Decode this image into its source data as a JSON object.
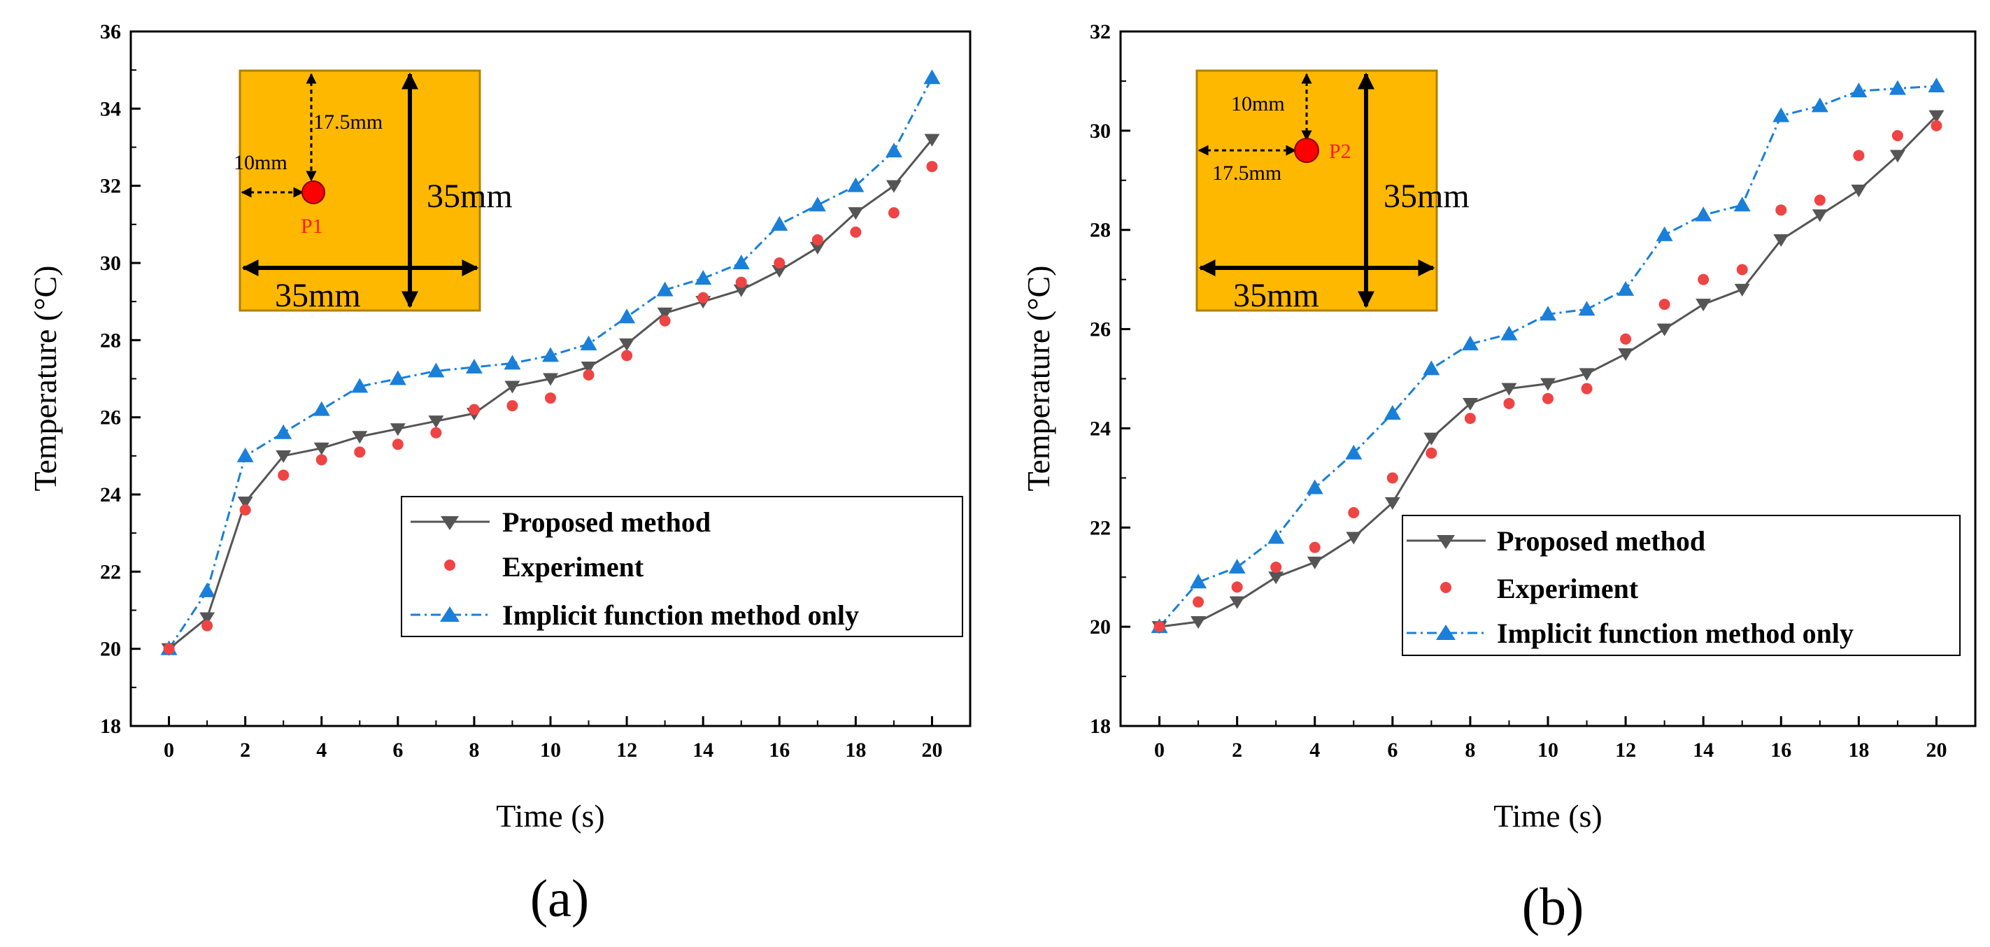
{
  "colors": {
    "proposed": "#555555",
    "experiment": "#ef4444",
    "implicit": "#1a7fd9",
    "inset_fill": "#ffb800",
    "inset_border": "#b08000"
  },
  "legend": {
    "proposed": "Proposed method",
    "experiment": "Experiment",
    "implicit": "Implicit function method only"
  },
  "panels": {
    "a": {
      "label": "(a)",
      "inset": {
        "top": "17.5mm",
        "left": "10mm",
        "vertical": "35mm",
        "horizontal": "35mm",
        "point": "P1"
      }
    },
    "b": {
      "label": "(b)",
      "inset": {
        "top": "10mm",
        "left": "17.5mm",
        "vertical": "35mm",
        "horizontal": "35mm",
        "point": "P2"
      }
    }
  },
  "chart_data": [
    {
      "type": "line",
      "panel": "a",
      "xlabel": "Time (s)",
      "ylabel": "Temperature (°C)",
      "xlim": [
        -1,
        21
      ],
      "ylim": [
        18,
        36
      ],
      "xticks": [
        0,
        2,
        4,
        6,
        8,
        10,
        12,
        14,
        16,
        18,
        20
      ],
      "yticks": [
        18,
        20,
        22,
        24,
        26,
        28,
        30,
        32,
        34,
        36
      ],
      "x": [
        0,
        1,
        2,
        3,
        4,
        5,
        6,
        7,
        8,
        9,
        10,
        11,
        12,
        13,
        14,
        15,
        16,
        17,
        18,
        19,
        20
      ],
      "series": [
        {
          "name": "Proposed method",
          "values": [
            20.0,
            20.8,
            23.8,
            25.0,
            25.2,
            25.5,
            25.7,
            25.9,
            26.1,
            26.8,
            27.0,
            27.3,
            27.9,
            28.7,
            29.0,
            29.3,
            29.8,
            30.4,
            31.3,
            32.0,
            33.2
          ]
        },
        {
          "name": "Experiment",
          "values": [
            20.0,
            20.6,
            23.6,
            24.5,
            24.9,
            25.1,
            25.3,
            25.6,
            26.2,
            26.3,
            26.5,
            27.1,
            27.6,
            28.5,
            29.1,
            29.5,
            30.0,
            30.6,
            30.8,
            31.3,
            32.5
          ]
        },
        {
          "name": "Implicit function method only",
          "values": [
            20.0,
            21.5,
            25.0,
            25.6,
            26.2,
            26.8,
            27.0,
            27.2,
            27.3,
            27.4,
            27.6,
            27.9,
            28.6,
            29.3,
            29.6,
            30.0,
            31.0,
            31.5,
            32.0,
            32.9,
            34.8
          ]
        }
      ],
      "legend_position": "bottom-right"
    },
    {
      "type": "line",
      "panel": "b",
      "xlabel": "Time (s)",
      "ylabel": "Temperature (°C)",
      "xlim": [
        -1,
        21
      ],
      "ylim": [
        18,
        32
      ],
      "xticks": [
        0,
        2,
        4,
        6,
        8,
        10,
        12,
        14,
        16,
        18,
        20
      ],
      "yticks": [
        18,
        20,
        22,
        24,
        26,
        28,
        30,
        32
      ],
      "x": [
        0,
        1,
        2,
        3,
        4,
        5,
        6,
        7,
        8,
        9,
        10,
        11,
        12,
        13,
        14,
        15,
        16,
        17,
        18,
        19,
        20
      ],
      "series": [
        {
          "name": "Proposed method",
          "values": [
            20.0,
            20.1,
            20.5,
            21.0,
            21.3,
            21.8,
            22.5,
            23.8,
            24.5,
            24.8,
            24.9,
            25.1,
            25.5,
            26.0,
            26.5,
            26.8,
            27.8,
            28.3,
            28.8,
            29.5,
            30.3
          ]
        },
        {
          "name": "Experiment",
          "values": [
            20.0,
            20.5,
            20.8,
            21.2,
            21.6,
            22.3,
            23.0,
            23.5,
            24.2,
            24.5,
            24.6,
            24.8,
            25.8,
            26.5,
            27.0,
            27.2,
            28.4,
            28.6,
            29.5,
            29.9,
            30.1
          ]
        },
        {
          "name": "Implicit function method only",
          "values": [
            20.0,
            20.9,
            21.2,
            21.8,
            22.8,
            23.5,
            24.3,
            25.2,
            25.7,
            25.9,
            26.3,
            26.4,
            26.8,
            27.9,
            28.3,
            28.5,
            30.3,
            30.5,
            30.8,
            30.85,
            30.9
          ]
        }
      ],
      "legend_position": "bottom-right"
    }
  ]
}
